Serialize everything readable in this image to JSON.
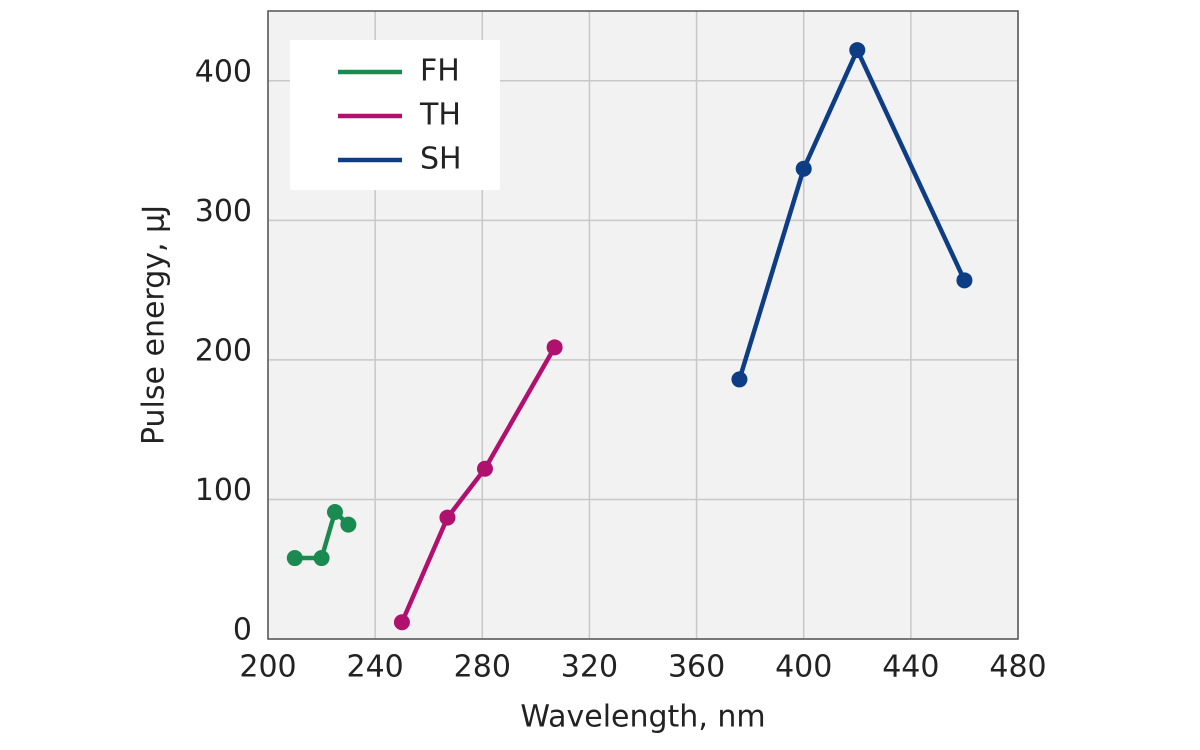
{
  "chart_data": {
    "type": "line",
    "x_label": "Wavelength, nm",
    "y_label": "Pulse energy, µJ",
    "xlim": [
      200,
      480
    ],
    "xticks": [
      200,
      240,
      280,
      320,
      360,
      400,
      440,
      480
    ],
    "ylim": [
      0,
      450
    ],
    "yticks": [
      0,
      100,
      200,
      300,
      400
    ],
    "grid": true,
    "legend": "upper-left",
    "series": [
      {
        "name": "FH",
        "color": "#1a8a50",
        "x": [
          210,
          220,
          225,
          230
        ],
        "values": [
          58,
          58,
          91,
          82
        ]
      },
      {
        "name": "TH",
        "color": "#b0106e",
        "x": [
          250,
          267,
          281,
          307
        ],
        "values": [
          12,
          87,
          122,
          209
        ]
      },
      {
        "name": "SH",
        "color": "#0d3d84",
        "x": [
          376,
          400,
          420,
          460
        ],
        "values": [
          186,
          337,
          422,
          257
        ]
      }
    ]
  }
}
